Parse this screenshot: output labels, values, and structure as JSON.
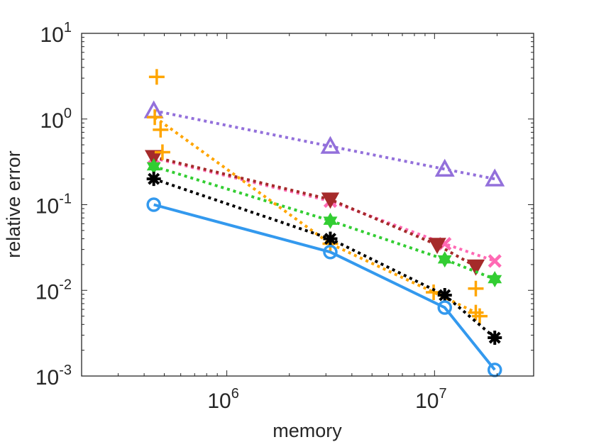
{
  "chart_data": {
    "type": "line",
    "title": "",
    "xlabel": "memory",
    "ylabel": "relative error",
    "xscale": "log",
    "yscale": "log",
    "xlim": [
      200000,
      30000000
    ],
    "ylim": [
      0.001,
      10
    ],
    "grid": false,
    "legend": "none",
    "x_ticks": [
      {
        "value": 1000000,
        "base": "10",
        "exp": "6"
      },
      {
        "value": 10000000,
        "base": "10",
        "exp": "7"
      }
    ],
    "y_ticks": [
      {
        "value": 10,
        "base": "10",
        "exp": "1"
      },
      {
        "value": 1,
        "base": "10",
        "exp": "0"
      },
      {
        "value": 0.1,
        "base": "10",
        "exp": "-1"
      },
      {
        "value": 0.01,
        "base": "10",
        "exp": "-2"
      },
      {
        "value": 0.001,
        "base": "10",
        "exp": "-3"
      }
    ],
    "series": [
      {
        "color": "#9370DB",
        "marker": "triangle-up",
        "linestyle": "dotted",
        "x": [
          445000,
          3150000,
          11200000,
          19500000
        ],
        "y": [
          1.25,
          0.48,
          0.26,
          0.2
        ]
      },
      {
        "color": "#FF69B4",
        "marker": "x",
        "linestyle": "dotted",
        "x": [
          445000,
          3150000,
          11200000,
          19500000
        ],
        "y": [
          0.35,
          0.11,
          0.035,
          0.022
        ]
      },
      {
        "color": "#A52A2A",
        "marker": "triangle-down",
        "linestyle": "dotted",
        "x": [
          445000,
          3150000,
          10300000,
          15800000
        ],
        "y": [
          0.36,
          0.115,
          0.034,
          0.019
        ]
      },
      {
        "color": "#32CD32",
        "marker": "hexagram",
        "linestyle": "dotted",
        "x": [
          445000,
          3150000,
          11200000,
          19500000
        ],
        "y": [
          0.28,
          0.065,
          0.023,
          0.0135
        ]
      },
      {
        "color": "#FFA500",
        "marker": "plus",
        "linestyle": "dotted",
        "x": [
          450000,
          3150000,
          9900000,
          15800000
        ],
        "y": [
          1.05,
          0.035,
          0.0095,
          0.0055
        ]
      },
      {
        "color": "#FFA500",
        "marker": "plus",
        "linestyle": "none",
        "x": [
          460000,
          480000,
          490000,
          15800000,
          16500000
        ],
        "y": [
          3.1,
          0.75,
          0.41,
          0.0105,
          0.005
        ]
      },
      {
        "color": "#000000",
        "marker": "asterisk",
        "linestyle": "dotted",
        "x": [
          445000,
          3150000,
          11200000,
          19500000
        ],
        "y": [
          0.2,
          0.04,
          0.0088,
          0.0028
        ]
      },
      {
        "color": "#3399EE",
        "marker": "circle",
        "linestyle": "solid",
        "x": [
          445000,
          3150000,
          11200000,
          19500000
        ],
        "y": [
          0.1,
          0.028,
          0.0063,
          0.00118
        ]
      }
    ]
  }
}
